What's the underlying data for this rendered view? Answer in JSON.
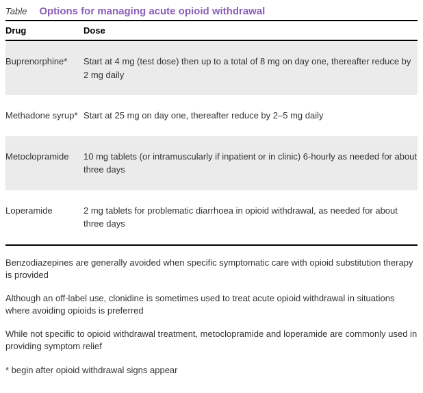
{
  "header": {
    "label": "Table",
    "title": "Options for managing acute opioid withdrawal"
  },
  "columns": {
    "drug": "Drug",
    "dose": "Dose"
  },
  "rows": [
    {
      "drug": "Buprenorphine*",
      "dose": "Start at 4 mg (test dose) then up to a total of 8 mg on day one, thereafter reduce by 2 mg daily"
    },
    {
      "drug": "Methadone syrup*",
      "dose": "Start at 25 mg on day one, thereafter reduce by 2–5 mg daily"
    },
    {
      "drug": "Metoclopramide",
      "dose": "10 mg tablets (or intramuscularly if inpatient or in clinic) 6-hourly as needed for about three days"
    },
    {
      "drug": "Loperamide",
      "dose": "2 mg tablets for problematic diarrhoea in opioid withdrawal, as needed for about three days"
    }
  ],
  "notes": [
    "Benzodiazepines are generally avoided when specific symptomatic care with opioid substitution therapy is provided",
    "Although an off-label use, clonidine is sometimes used to treat acute opioid withdrawal in situations where avoiding opioids is preferred",
    "While not specific to opioid withdrawal treatment, metoclopramide and loperamide are commonly used in providing symptom relief",
    "* begin after opioid withdrawal signs appear"
  ]
}
